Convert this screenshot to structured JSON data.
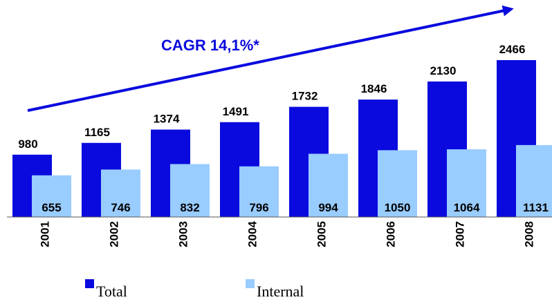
{
  "chart_data": {
    "type": "bar",
    "annotation": "CAGR 14,1%*",
    "categories": [
      "2001",
      "2002",
      "2003",
      "2004",
      "2005",
      "2006",
      "2007",
      "2008"
    ],
    "series": [
      {
        "name": "Total",
        "color": "#0a0ade",
        "values": [
          980,
          1165,
          1374,
          1491,
          1732,
          1846,
          2130,
          2466
        ]
      },
      {
        "name": "Internal",
        "color": "#99ccff",
        "values": [
          655,
          746,
          832,
          796,
          994,
          1050,
          1064,
          1131
        ]
      }
    ],
    "legend": "bottom"
  }
}
